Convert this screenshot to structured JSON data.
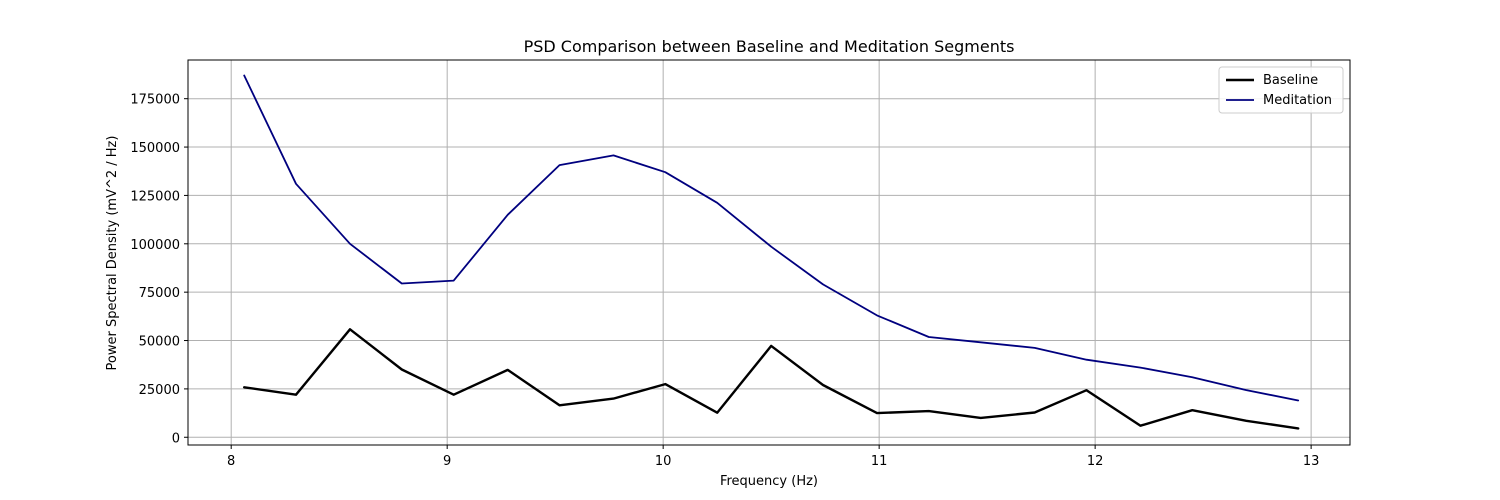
{
  "chart_data": {
    "type": "line",
    "title": "PSD Comparison between Baseline and Meditation Segments",
    "xlabel": "Frequency (Hz)",
    "ylabel": "Power Spectral Density (mV^2 / Hz)",
    "xlim": [
      7.8,
      13.18
    ],
    "ylim": [
      -4000,
      195000
    ],
    "xticks": [
      8,
      9,
      10,
      11,
      12,
      13
    ],
    "xtick_labels": [
      "8",
      "9",
      "10",
      "11",
      "12",
      "13"
    ],
    "yticks": [
      0,
      25000,
      50000,
      75000,
      100000,
      125000,
      150000,
      175000
    ],
    "ytick_labels": [
      "0",
      "25000",
      "50000",
      "75000",
      "100000",
      "125000",
      "150000",
      "175000"
    ],
    "grid": true,
    "legend_position": "top-right",
    "x": [
      8.06,
      8.3,
      8.55,
      8.79,
      9.03,
      9.28,
      9.52,
      9.77,
      10.01,
      10.25,
      10.5,
      10.74,
      10.99,
      11.23,
      11.47,
      11.72,
      11.96,
      12.21,
      12.45,
      12.7,
      12.94
    ],
    "series": [
      {
        "name": "Baseline",
        "color": "#000000",
        "width": 2.4,
        "values": [
          25800,
          22000,
          55800,
          35000,
          22000,
          34800,
          16500,
          20000,
          27500,
          12700,
          47200,
          27000,
          12500,
          13500,
          10000,
          12800,
          24300,
          6000,
          14000,
          8500,
          4600
        ]
      },
      {
        "name": "Meditation",
        "color": "#00007f",
        "width": 1.8,
        "values": [
          187000,
          131000,
          100000,
          79500,
          81000,
          115000,
          140700,
          145700,
          137000,
          121200,
          98500,
          79000,
          63000,
          51800,
          49100,
          46200,
          40100,
          36000,
          31000,
          24400,
          19000
        ]
      }
    ]
  }
}
